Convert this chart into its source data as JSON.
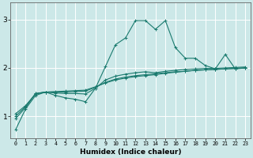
{
  "xlabel": "Humidex (Indice chaleur)",
  "bg_color": "#cce8e8",
  "line_color": "#1a7a6e",
  "grid_color": "#ffffff",
  "x_ticks": [
    0,
    1,
    2,
    3,
    4,
    5,
    6,
    7,
    8,
    9,
    10,
    11,
    12,
    13,
    14,
    15,
    16,
    17,
    18,
    19,
    20,
    21,
    22,
    23
  ],
  "y_ticks": [
    1,
    2,
    3
  ],
  "ylim": [
    0.55,
    3.35
  ],
  "xlim": [
    -0.5,
    23.5
  ],
  "series": [
    [
      0.72,
      1.15,
      1.43,
      1.5,
      1.43,
      1.38,
      1.35,
      1.3,
      1.58,
      2.03,
      2.48,
      2.62,
      2.98,
      2.98,
      2.8,
      2.98,
      2.42,
      2.2,
      2.2,
      2.05,
      1.98,
      2.28,
      1.98,
      2.0
    ],
    [
      0.95,
      1.18,
      1.47,
      1.5,
      1.48,
      1.47,
      1.47,
      1.46,
      1.58,
      1.75,
      1.83,
      1.87,
      1.9,
      1.92,
      1.9,
      1.93,
      1.95,
      1.97,
      1.98,
      1.99,
      1.99,
      2.0,
      2.01,
      2.02
    ],
    [
      1.0,
      1.2,
      1.47,
      1.5,
      1.5,
      1.5,
      1.51,
      1.52,
      1.6,
      1.7,
      1.77,
      1.81,
      1.84,
      1.86,
      1.88,
      1.9,
      1.92,
      1.93,
      1.95,
      1.96,
      1.97,
      1.98,
      1.99,
      2.0
    ],
    [
      1.05,
      1.22,
      1.46,
      1.5,
      1.51,
      1.52,
      1.53,
      1.54,
      1.61,
      1.69,
      1.75,
      1.79,
      1.82,
      1.84,
      1.86,
      1.89,
      1.91,
      1.93,
      1.95,
      1.96,
      1.97,
      1.98,
      1.99,
      2.0
    ]
  ]
}
